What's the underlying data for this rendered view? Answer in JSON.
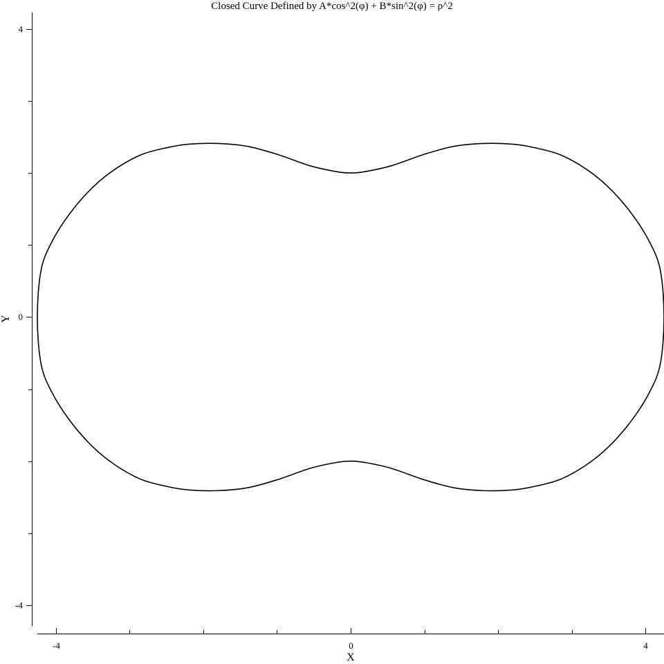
{
  "chart_data": {
    "type": "line",
    "title": "Closed Curve Defined by A*cos^2(φ) + B*sin^2(φ) = ρ^2",
    "xlabel": "X",
    "ylabel": "Y",
    "xlim": [
      -4.25,
      4.25
    ],
    "ylim": [
      -4.25,
      4.2
    ],
    "x_major_ticks": [
      -4,
      0,
      4
    ],
    "x_tick_labels": [
      "-4",
      "0",
      "4"
    ],
    "x_minor_ticks": [
      -3,
      -2,
      -1,
      1,
      2,
      3
    ],
    "y_major_ticks": [
      -4,
      0,
      4
    ],
    "y_tick_labels": [
      "-4",
      "0",
      "4"
    ],
    "y_minor_ticks": [
      -3,
      -2,
      -1,
      1,
      2,
      3
    ],
    "grid": false,
    "series": [
      {
        "color": "#000000",
        "curve": "closed",
        "x": [
          4.25,
          4.2,
          4.05,
          3.8,
          3.5,
          3.2,
          2.85,
          2.5,
          2.2,
          1.8,
          1.4,
          1.0,
          0.55,
          0.2,
          0.0,
          -0.2,
          -0.55,
          -1.0,
          -1.4,
          -1.8,
          -2.2,
          -2.5,
          -2.85,
          -3.2,
          -3.5,
          -3.8,
          -4.05,
          -4.2,
          -4.25,
          -4.2,
          -4.05,
          -3.8,
          -3.5,
          -3.2,
          -2.85,
          -2.5,
          -2.2,
          -1.8,
          -1.4,
          -1.0,
          -0.55,
          -0.2,
          0.0,
          0.2,
          0.55,
          1.0,
          1.4,
          1.8,
          2.2,
          2.5,
          2.85,
          3.2,
          3.5,
          3.8,
          4.05,
          4.2
        ],
        "y": [
          0.0,
          0.65,
          1.05,
          1.45,
          1.8,
          2.05,
          2.25,
          2.35,
          2.4,
          2.41,
          2.37,
          2.26,
          2.1,
          2.02,
          2.0,
          2.02,
          2.1,
          2.26,
          2.37,
          2.41,
          2.4,
          2.35,
          2.25,
          2.05,
          1.8,
          1.45,
          1.05,
          0.65,
          0.0,
          -0.65,
          -1.05,
          -1.45,
          -1.8,
          -2.05,
          -2.25,
          -2.35,
          -2.4,
          -2.41,
          -2.37,
          -2.26,
          -2.1,
          -2.02,
          -2.0,
          -2.02,
          -2.1,
          -2.26,
          -2.37,
          -2.41,
          -2.4,
          -2.35,
          -2.25,
          -2.05,
          -1.8,
          -1.45,
          -1.05,
          -0.65
        ]
      }
    ]
  }
}
